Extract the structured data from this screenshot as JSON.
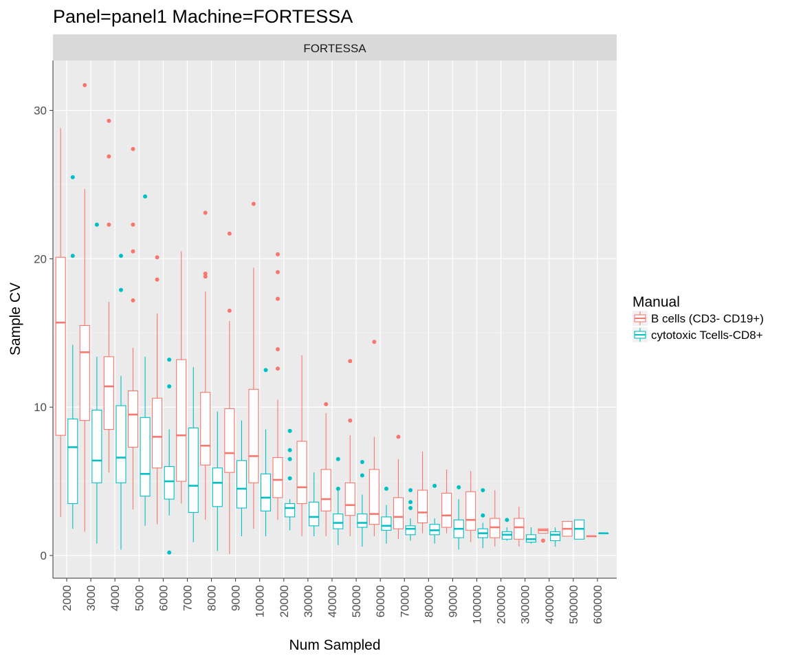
{
  "chart_data": {
    "type": "box",
    "title": "Panel=panel1 Machine=FORTESSA",
    "facet_label": "FORTESSA",
    "xlabel": "Num Sampled",
    "ylabel": "Sample CV",
    "ylim": [
      -1.5,
      33.5
    ],
    "yticks": [
      0,
      10,
      20,
      30
    ],
    "grid": true,
    "legend_position": "right",
    "legend_title": "Manual",
    "categories": [
      "2000",
      "3000",
      "4000",
      "5000",
      "6000",
      "7000",
      "8000",
      "9000",
      "10000",
      "20000",
      "30000",
      "40000",
      "50000",
      "60000",
      "70000",
      "80000",
      "90000",
      "100000",
      "200000",
      "300000",
      "400000",
      "500000",
      "600000"
    ],
    "series": [
      {
        "name": "B cells (CD3- CD19+)",
        "color": "#F8766D",
        "boxes": [
          {
            "min": 2.6,
            "q1": 8.1,
            "median": 15.7,
            "q3": 20.1,
            "max": 28.8,
            "outliers": []
          },
          {
            "min": 1.6,
            "q1": 9.1,
            "median": 13.7,
            "q3": 15.5,
            "max": 24.7,
            "outliers": [
              31.7
            ]
          },
          {
            "min": 5.6,
            "q1": 8.5,
            "median": 11.4,
            "q3": 13.4,
            "max": 17.1,
            "outliers": [
              29.3,
              26.9,
              22.3
            ]
          },
          {
            "min": 3.1,
            "q1": 7.3,
            "median": 9.5,
            "q3": 11.1,
            "max": 14.0,
            "outliers": [
              27.4,
              22.3,
              20.5,
              17.2
            ]
          },
          {
            "min": 2.1,
            "q1": 5.9,
            "median": 8.0,
            "q3": 10.6,
            "max": 16.3,
            "outliers": [
              20.1,
              18.6
            ]
          },
          {
            "min": 3.5,
            "q1": 5.0,
            "median": 8.1,
            "q3": 13.2,
            "max": 20.5,
            "outliers": []
          },
          {
            "min": 2.4,
            "q1": 6.1,
            "median": 7.4,
            "q3": 11.0,
            "max": 17.8,
            "outliers": [
              23.1,
              19.0,
              18.8
            ]
          },
          {
            "min": 0.1,
            "q1": 5.6,
            "median": 6.9,
            "q3": 9.9,
            "max": 15.8,
            "outliers": [
              21.7,
              16.5
            ]
          },
          {
            "min": 1.8,
            "q1": 4.9,
            "median": 6.7,
            "q3": 11.2,
            "max": 19.4,
            "outliers": [
              23.7
            ]
          },
          {
            "min": 2.4,
            "q1": 3.9,
            "median": 5.1,
            "q3": 6.6,
            "max": 10.5,
            "outliers": [
              20.3,
              19.1,
              17.3,
              13.9,
              12.6
            ]
          },
          {
            "min": 1.3,
            "q1": 3.5,
            "median": 4.6,
            "q3": 7.7,
            "max": 13.5,
            "outliers": []
          },
          {
            "min": 1.3,
            "q1": 3.0,
            "median": 3.8,
            "q3": 5.8,
            "max": 9.6,
            "outliers": [
              10.2
            ]
          },
          {
            "min": 1.3,
            "q1": 2.7,
            "median": 3.4,
            "q3": 4.9,
            "max": 8.1,
            "outliers": [
              13.1,
              9.1
            ]
          },
          {
            "min": 1.3,
            "q1": 2.1,
            "median": 2.8,
            "q3": 5.8,
            "max": 8.0,
            "outliers": [
              14.4
            ]
          },
          {
            "min": 1.1,
            "q1": 1.8,
            "median": 2.6,
            "q3": 3.9,
            "max": 6.5,
            "outliers": [
              8.0
            ]
          },
          {
            "min": 1.5,
            "q1": 2.2,
            "median": 2.9,
            "q3": 4.4,
            "max": 7.0,
            "outliers": []
          },
          {
            "min": 1.5,
            "q1": 1.9,
            "median": 2.7,
            "q3": 4.2,
            "max": 5.8,
            "outliers": []
          },
          {
            "min": 0.9,
            "q1": 1.7,
            "median": 2.4,
            "q3": 4.3,
            "max": 5.7,
            "outliers": []
          },
          {
            "min": 0.6,
            "q1": 1.2,
            "median": 1.9,
            "q3": 2.5,
            "max": 4.4,
            "outliers": []
          },
          {
            "min": 0.6,
            "q1": 1.1,
            "median": 1.9,
            "q3": 2.5,
            "max": 3.3,
            "outliers": []
          },
          {
            "min": 1.5,
            "q1": 1.5,
            "median": 1.7,
            "q3": 1.8,
            "max": 1.8,
            "outliers": [
              1.0
            ]
          },
          {
            "min": 1.3,
            "q1": 1.3,
            "median": 1.8,
            "q3": 2.3,
            "max": 2.3,
            "outliers": []
          },
          {
            "min": 1.3,
            "q1": 1.3,
            "median": 1.3,
            "q3": 1.3,
            "max": 1.3,
            "outliers": []
          }
        ]
      },
      {
        "name": "cytotoxic Tcells-CD8+",
        "color": "#00BFC4",
        "boxes": [
          {
            "min": 1.8,
            "q1": 3.5,
            "median": 7.3,
            "q3": 9.2,
            "max": 14.2,
            "outliers": [
              25.5,
              20.2
            ]
          },
          {
            "min": 0.8,
            "q1": 4.9,
            "median": 6.4,
            "q3": 9.8,
            "max": 13.4,
            "outliers": [
              22.3
            ]
          },
          {
            "min": 0.4,
            "q1": 4.9,
            "median": 6.6,
            "q3": 10.1,
            "max": 12.1,
            "outliers": [
              20.2,
              17.9
            ]
          },
          {
            "min": 2.0,
            "q1": 4.0,
            "median": 5.5,
            "q3": 9.3,
            "max": 13.4,
            "outliers": [
              24.2
            ]
          },
          {
            "min": 2.7,
            "q1": 3.8,
            "median": 5.0,
            "q3": 6.0,
            "max": 8.5,
            "outliers": [
              13.2,
              11.4,
              0.2
            ]
          },
          {
            "min": 0.9,
            "q1": 2.9,
            "median": 4.7,
            "q3": 8.6,
            "max": 12.7,
            "outliers": []
          },
          {
            "min": 0.3,
            "q1": 3.3,
            "median": 4.9,
            "q3": 5.9,
            "max": 9.7,
            "outliers": []
          },
          {
            "min": 1.3,
            "q1": 3.2,
            "median": 4.5,
            "q3": 6.4,
            "max": 9.1,
            "outliers": []
          },
          {
            "min": 1.3,
            "q1": 3.0,
            "median": 3.9,
            "q3": 5.5,
            "max": 8.5,
            "outliers": [
              12.5
            ]
          },
          {
            "min": 1.7,
            "q1": 2.6,
            "median": 3.2,
            "q3": 3.5,
            "max": 3.8,
            "outliers": [
              8.4,
              7.1,
              6.5,
              5.2
            ]
          },
          {
            "min": 1.3,
            "q1": 2.0,
            "median": 2.6,
            "q3": 3.6,
            "max": 5.6,
            "outliers": []
          },
          {
            "min": 0.7,
            "q1": 1.8,
            "median": 2.2,
            "q3": 2.8,
            "max": 4.5,
            "outliers": [
              6.5,
              4.5
            ]
          },
          {
            "min": 0.6,
            "q1": 1.9,
            "median": 2.2,
            "q3": 2.8,
            "max": 4.1,
            "outliers": [
              6.3,
              5.4
            ]
          },
          {
            "min": 0.8,
            "q1": 1.7,
            "median": 2.0,
            "q3": 2.6,
            "max": 3.4,
            "outliers": [
              4.5
            ]
          },
          {
            "min": 1.0,
            "q1": 1.4,
            "median": 1.8,
            "q3": 2.0,
            "max": 2.5,
            "outliers": [
              4.4,
              3.6,
              3.2
            ]
          },
          {
            "min": 0.8,
            "q1": 1.4,
            "median": 1.7,
            "q3": 2.1,
            "max": 2.5,
            "outliers": [
              4.7
            ]
          },
          {
            "min": 0.4,
            "q1": 1.2,
            "median": 1.8,
            "q3": 2.4,
            "max": 3.8,
            "outliers": [
              4.6
            ]
          },
          {
            "min": 0.5,
            "q1": 1.2,
            "median": 1.5,
            "q3": 1.8,
            "max": 2.2,
            "outliers": [
              4.4,
              2.7
            ]
          },
          {
            "min": 1.0,
            "q1": 1.1,
            "median": 1.4,
            "q3": 1.6,
            "max": 1.9,
            "outliers": [
              2.4
            ]
          },
          {
            "min": 0.8,
            "q1": 0.9,
            "median": 1.1,
            "q3": 1.4,
            "max": 1.9,
            "outliers": []
          },
          {
            "min": 0.6,
            "q1": 1.0,
            "median": 1.4,
            "q3": 1.6,
            "max": 1.9,
            "outliers": []
          },
          {
            "min": 1.1,
            "q1": 1.1,
            "median": 1.8,
            "q3": 2.4,
            "max": 2.4,
            "outliers": []
          },
          {
            "min": 1.5,
            "q1": 1.5,
            "median": 1.5,
            "q3": 1.5,
            "max": 1.5,
            "outliers": []
          }
        ]
      }
    ]
  }
}
